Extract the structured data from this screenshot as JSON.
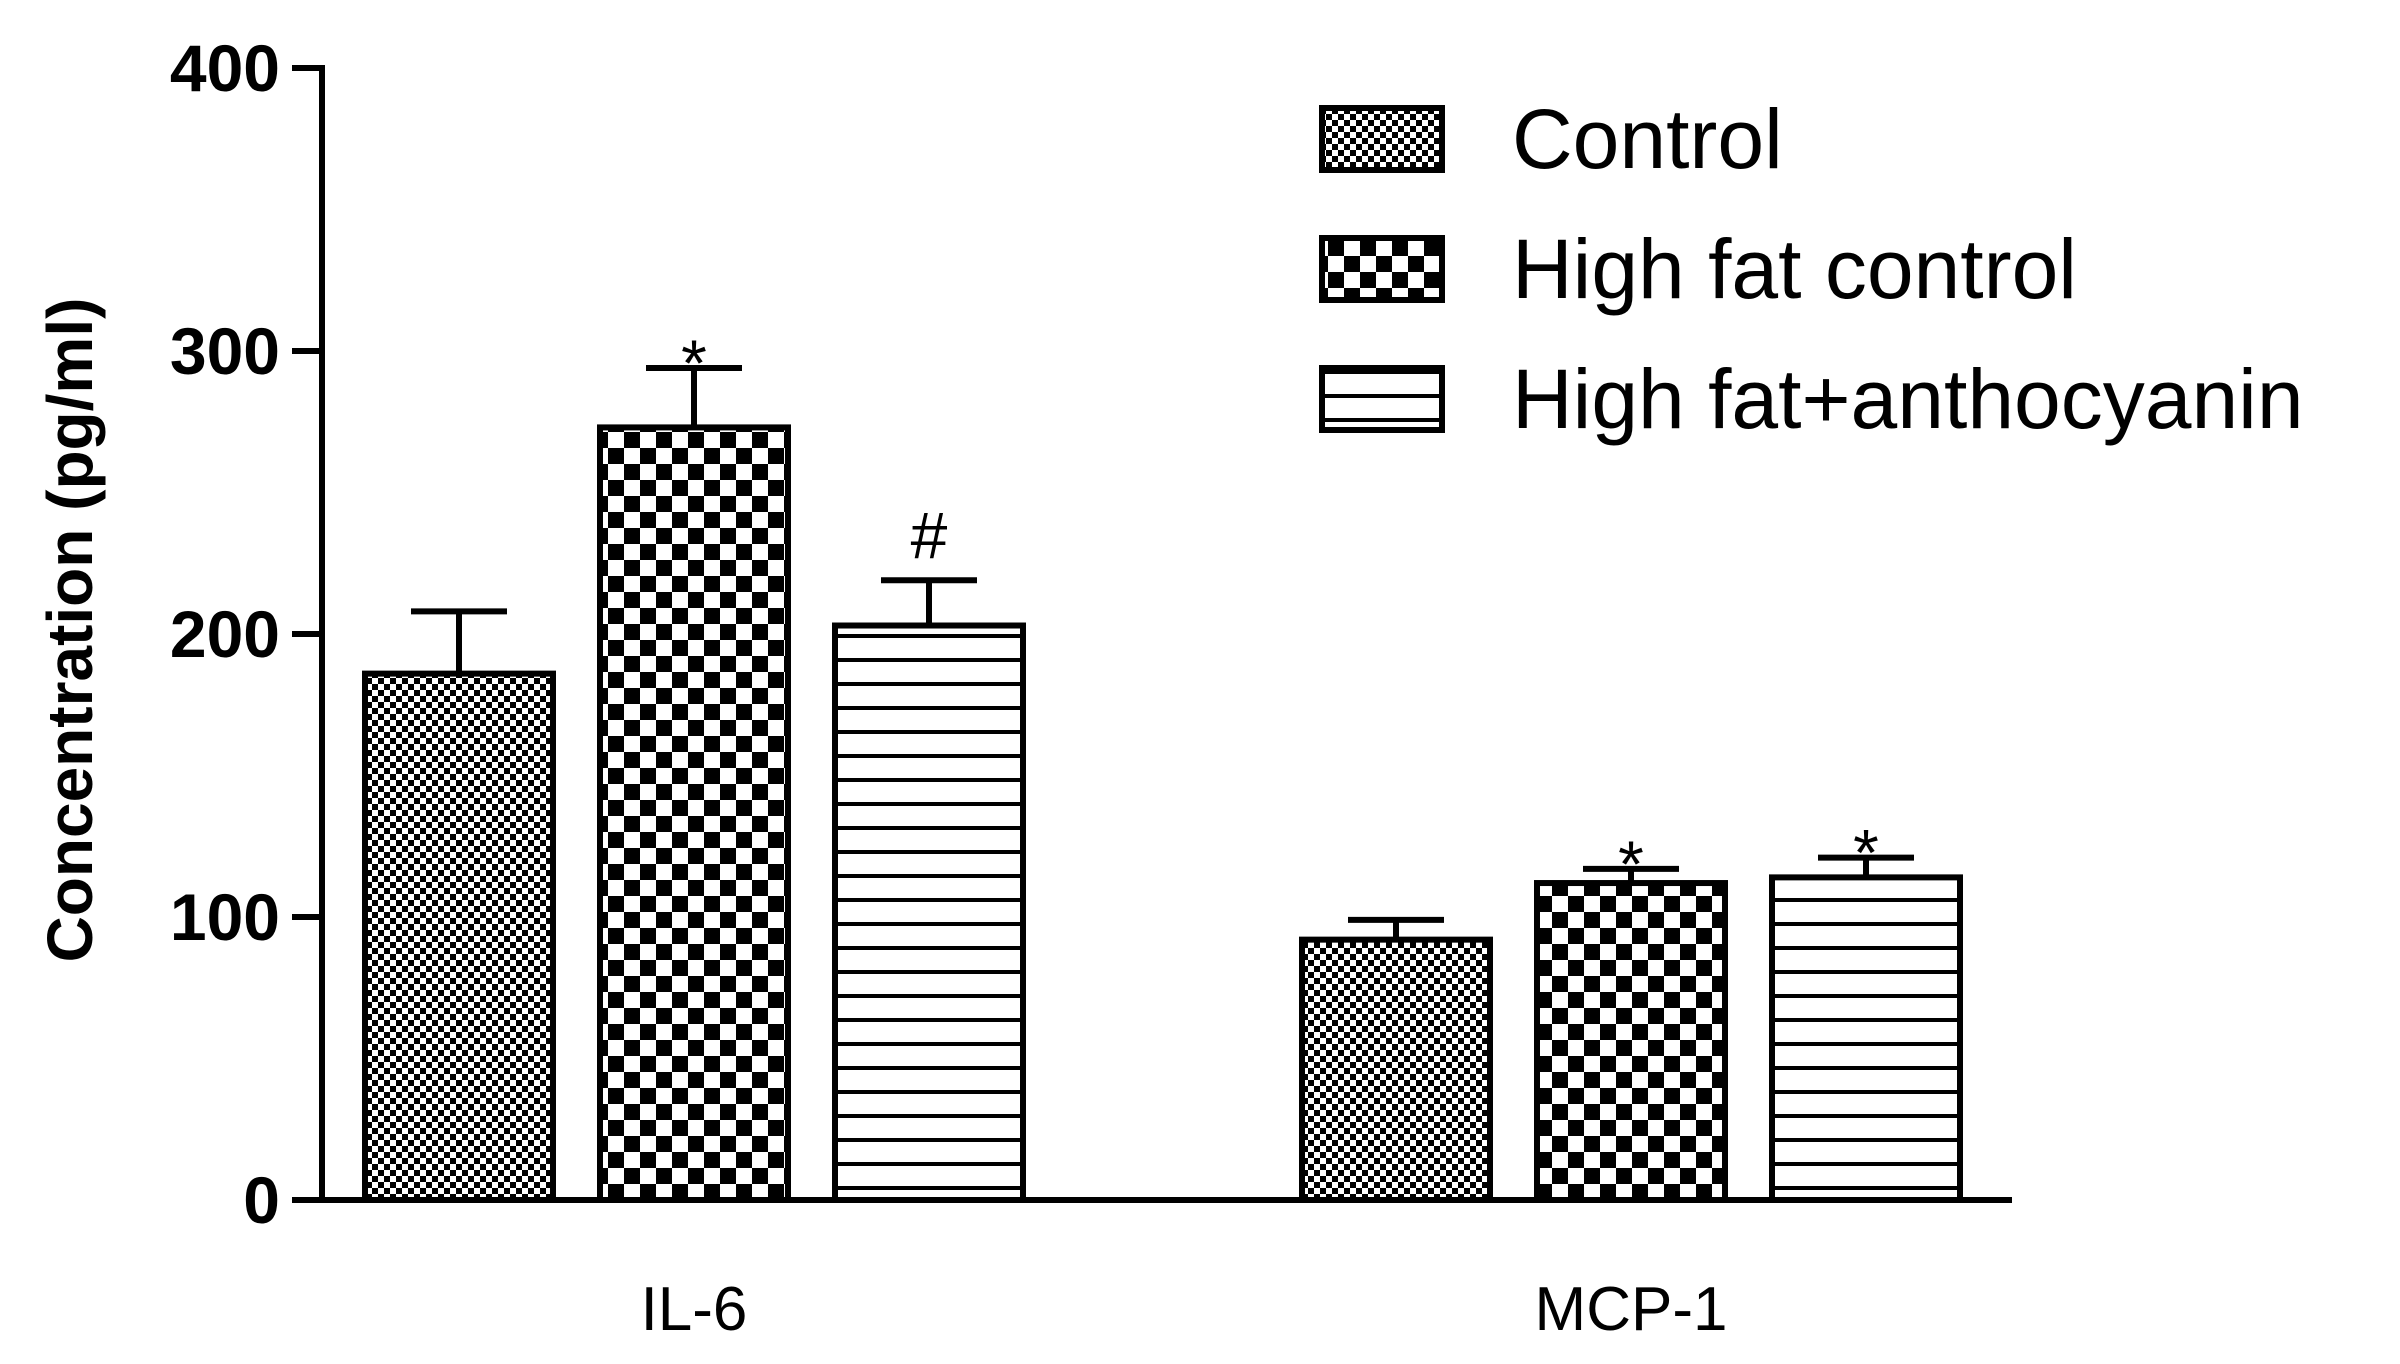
{
  "chart_data": {
    "type": "bar",
    "title": "",
    "xlabel": "",
    "ylabel": "Concentration (pg/ml)",
    "ylim": [
      0,
      400
    ],
    "yticks": [
      0,
      100,
      200,
      300,
      400
    ],
    "categories": [
      "IL-6",
      "MCP-1"
    ],
    "series": [
      {
        "name": "Control",
        "pattern": "fine-check",
        "values": [
          186,
          92
        ],
        "errors": [
          22,
          7
        ],
        "annotations": [
          "",
          ""
        ]
      },
      {
        "name": "High fat control",
        "pattern": "coarse-check",
        "values": [
          273,
          112
        ],
        "errors": [
          21,
          5
        ],
        "annotations": [
          "*",
          "*"
        ]
      },
      {
        "name": "High fat+anthocyanin",
        "pattern": "horizontal-lines",
        "values": [
          203,
          114
        ],
        "errors": [
          16,
          7
        ],
        "annotations": [
          "#",
          "*"
        ]
      }
    ],
    "legend_position": "top-right",
    "grid": false
  },
  "colors": {
    "ink": "#000000",
    "background": "#ffffff"
  }
}
